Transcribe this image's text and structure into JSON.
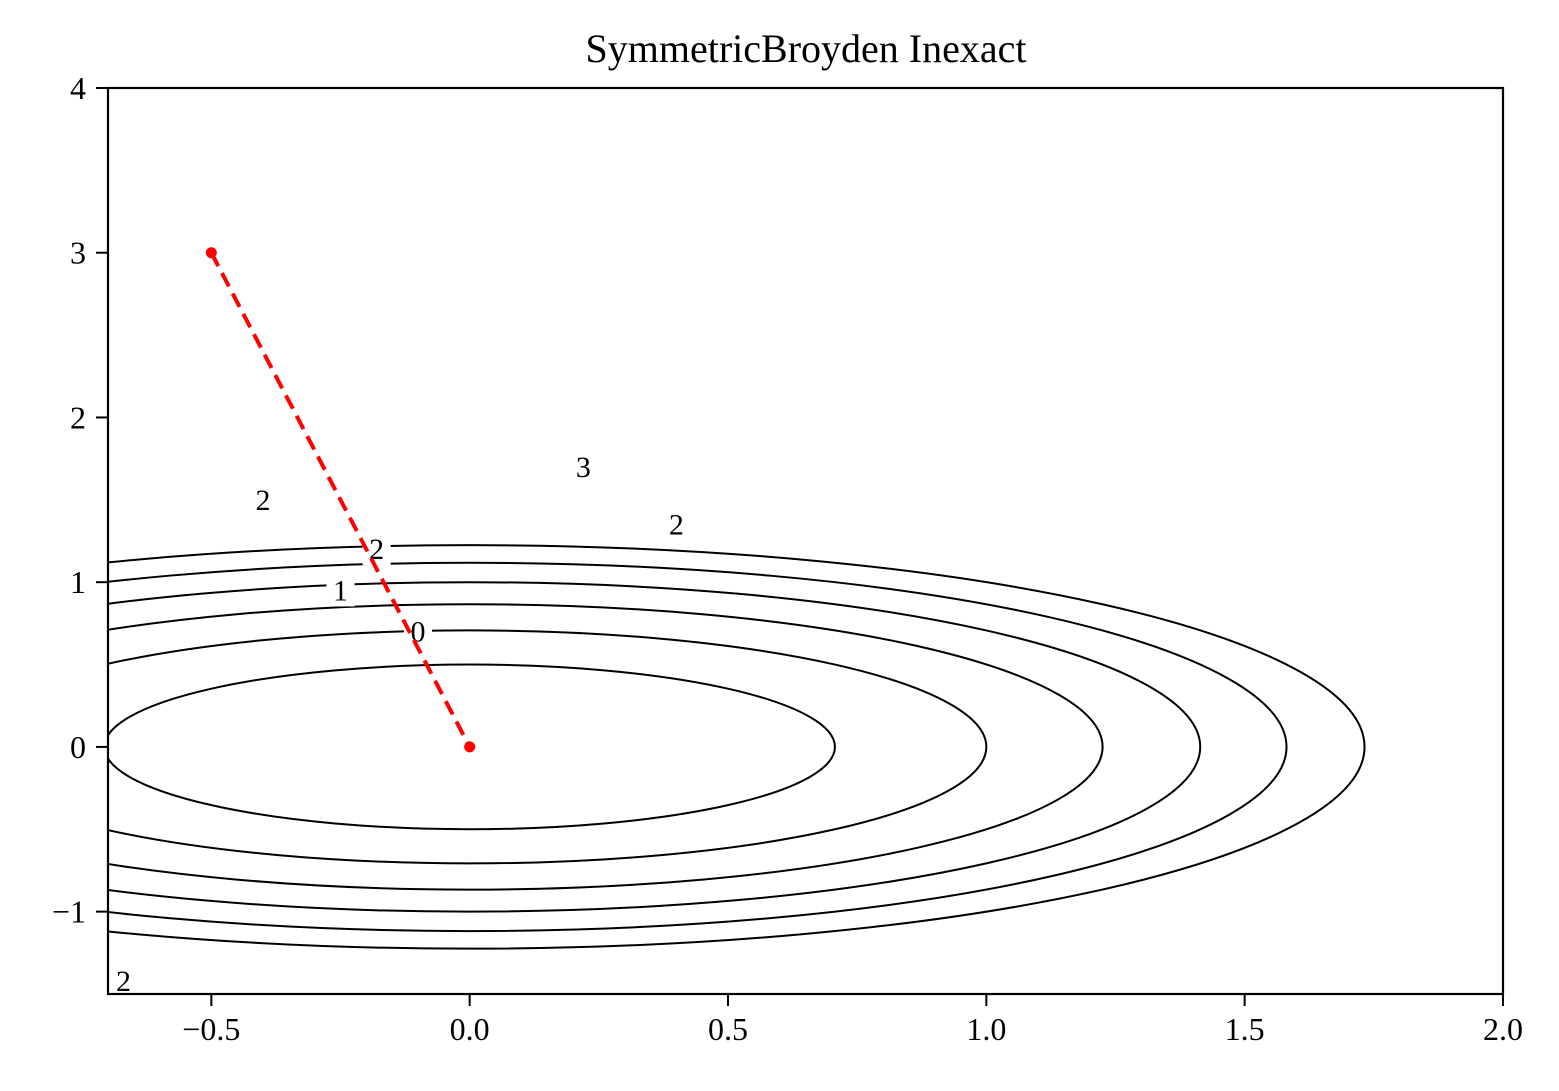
{
  "chart_data": {
    "type": "contour",
    "title": "SymmetricBroyden Inexact",
    "xlabel": "",
    "ylabel": "",
    "xlim": [
      -0.7,
      2.0
    ],
    "ylim": [
      -1.5,
      4.0
    ],
    "xticks": [
      -0.5,
      0.0,
      0.5,
      1.0,
      1.5,
      2.0
    ],
    "xtick_labels": [
      "−0.5",
      "0.0",
      "0.5",
      "1.0",
      "1.5",
      "2.0"
    ],
    "yticks": [
      -1,
      0,
      1,
      2,
      3,
      4
    ],
    "ytick_labels": [
      "−1",
      "0",
      "1",
      "2",
      "3",
      "4"
    ],
    "grid": false,
    "legend": "none",
    "contours": {
      "color": "#000000",
      "function": "x^2 + 2*y^2 (elliptical level sets centered at origin)",
      "levels": [
        {
          "a": 0.707,
          "b": 0.707
        },
        {
          "a": 1.0,
          "b": 1.0
        },
        {
          "a": 1.225,
          "b": 1.225
        },
        {
          "a": 1.414,
          "b": 1.414
        },
        {
          "a": 1.581,
          "b": 1.581
        },
        {
          "a": 1.732,
          "b": 1.732
        }
      ],
      "labels": [
        {
          "text": "0",
          "x": -0.1,
          "y": 0.7
        },
        {
          "text": "1",
          "x": -0.25,
          "y": 0.95
        },
        {
          "text": "2",
          "x": -0.18,
          "y": 1.2
        },
        {
          "text": "2",
          "x": -0.4,
          "y": 1.5
        },
        {
          "text": "2",
          "x": 0.4,
          "y": 1.35
        },
        {
          "text": "3",
          "x": 0.22,
          "y": 1.7
        },
        {
          "text": "2",
          "x": -0.67,
          "y": -1.42
        }
      ]
    },
    "series": [
      {
        "type": "line",
        "style": "dashed",
        "color": "#ff0000",
        "markers": true,
        "x": [
          -0.5,
          0.0
        ],
        "y": [
          3.0,
          0.0
        ]
      }
    ]
  }
}
